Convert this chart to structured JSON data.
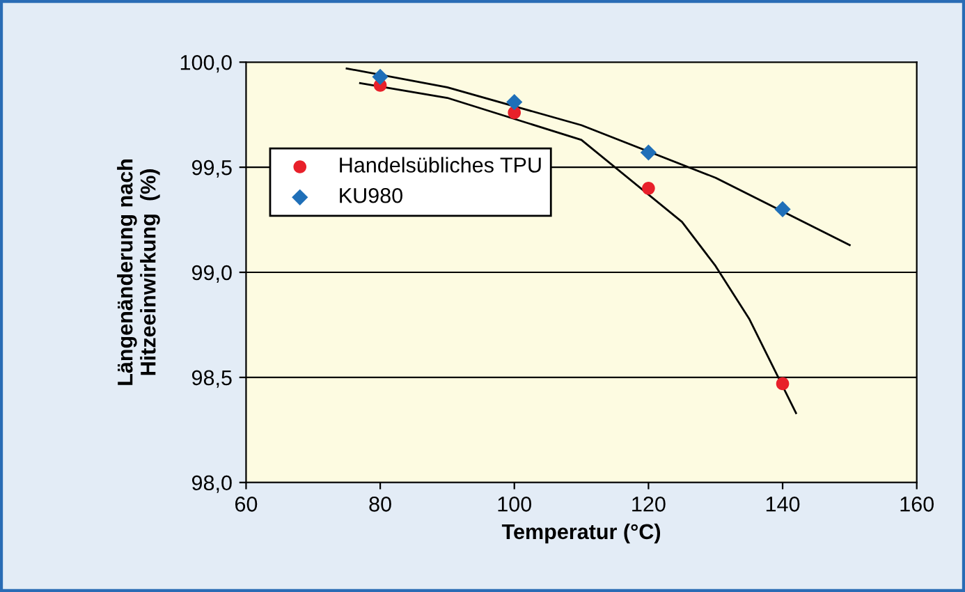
{
  "chart_data": {
    "type": "scatter",
    "xlabel": "Temperatur (°C)",
    "ylabel": "Längenänderung nach\nHitzeeinwirkung  (%)",
    "xlim": [
      60,
      160
    ],
    "xticks": [
      60,
      80,
      100,
      120,
      140,
      160
    ],
    "ylim": [
      98.0,
      100.0
    ],
    "yticks": [
      {
        "value": 98.0,
        "label": "98,0"
      },
      {
        "value": 98.5,
        "label": "98,5"
      },
      {
        "value": 99.0,
        "label": "99,0"
      },
      {
        "value": 99.5,
        "label": "99,5"
      },
      {
        "value": 100.0,
        "label": "100,0"
      }
    ],
    "grid": "y",
    "legend": "top left",
    "series": [
      {
        "name": "Handelsübliches TPU",
        "color": "#e8202a",
        "marker": "circle",
        "x": [
          80,
          100,
          120,
          140
        ],
        "values": [
          99.89,
          99.76,
          99.4,
          98.47
        ]
      },
      {
        "name": "KU980",
        "color": "#1f6fb8",
        "marker": "diamond",
        "x": [
          80,
          100,
          120,
          140
        ],
        "values": [
          99.93,
          99.81,
          99.57,
          99.3
        ]
      },
      {
        "type": "line",
        "color": "#000000",
        "x": [
          77,
          90,
          110,
          125,
          130,
          135,
          142
        ],
        "values": [
          99.9,
          99.83,
          99.63,
          99.24,
          99.03,
          98.78,
          98.33
        ]
      },
      {
        "type": "line",
        "color": "#000000",
        "x": [
          75,
          90,
          110,
          130,
          150
        ],
        "values": [
          99.97,
          99.88,
          99.7,
          99.45,
          99.13
        ]
      }
    ]
  }
}
